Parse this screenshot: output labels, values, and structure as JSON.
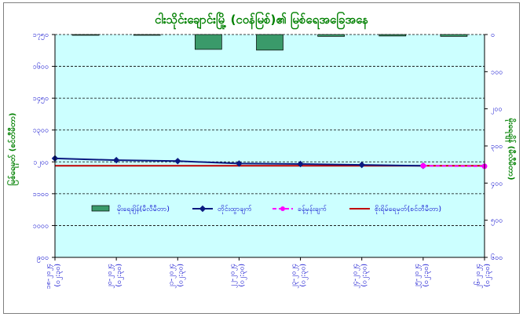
{
  "chart_data": {
    "type": "bar+line",
    "title": "ငါးသိုင်းချောင်းမြို့ (ငဝန်မြစ်)၏ မြစ်ရေအခြေအနေ",
    "ylabel_left": "မြစ်ရေမှတ် (စင်တီမီတာ)",
    "ylabel_right": "မိုးရေချိန် (မီလီမီတာ)",
    "categories": [
      [
        "၁၈-၂၀၂၄",
        "(၀၂:၃၀)"
      ],
      [
        "၂၀-၂၀၂၄",
        "(၀၂:၃၀)"
      ],
      [
        "၂၁-၂၀၂၄",
        "(၀၂:၃၀)"
      ],
      [
        "၂၂-၂၀၂၄",
        "(၀၂:၃၀)"
      ],
      [
        "၂၃-၂၀၂၄",
        "(၀၂:၃၀)"
      ],
      [
        "၂၄-၂၀၂၄",
        "(၀၂:၃၀)"
      ],
      [
        "၂၅-၂၀၂၄",
        "(၀၂:၃၀)"
      ],
      [
        "၂၆-၂၀၂၄",
        "(၀၂:၃၀)"
      ]
    ],
    "left_axis": {
      "min": 900,
      "max": 1900,
      "step": 150,
      "tick_labels": [
        "၉၀၀",
        "၁၀၀၀",
        "၁၁၀၀",
        "၁၂၀၀",
        "၁၃၀၀",
        "၁၄၅၀",
        "၁၆၀၀",
        "၁၇၅၀"
      ]
    },
    "right_axis": {
      "min": 0,
      "max": 600,
      "step": 100,
      "reversed": true,
      "tick_labels": [
        "၀",
        "၁၀၀",
        "၂၀၀",
        "၃၀၀",
        "၄၀၀",
        "၅၀၀",
        "၆၀၀"
      ]
    },
    "series": [
      {
        "name": "မိုးရေချိန်(မီလီမီတာ)",
        "kind": "bar",
        "axis": "right",
        "color": "#3a9a6a",
        "values": [
          2,
          0,
          40,
          42,
          5,
          4,
          5,
          null
        ]
      },
      {
        "name": "တိုင်းထွာချက်",
        "kind": "line",
        "axis": "left",
        "color": "#0a1a80",
        "values": [
          1344,
          1336,
          1332,
          1321,
          1319,
          1315,
          1311,
          null
        ]
      },
      {
        "name": "ခန့်မှန်းချက်",
        "kind": "dashed",
        "axis": "left",
        "color": "#ff00ff",
        "values": [
          null,
          null,
          null,
          null,
          null,
          null,
          1311,
          1309
        ]
      },
      {
        "name": "စိုးရိမ်ရေမှတ်(စင်တီမီတာ)",
        "kind": "hline",
        "axis": "left",
        "color": "#c00000",
        "value": 1311
      }
    ],
    "grid": "horizontal dashed",
    "legend_position": "center",
    "colors": {
      "plot_bg": "#ccffff",
      "title": "#008000",
      "ticks": "#0000cc"
    }
  }
}
